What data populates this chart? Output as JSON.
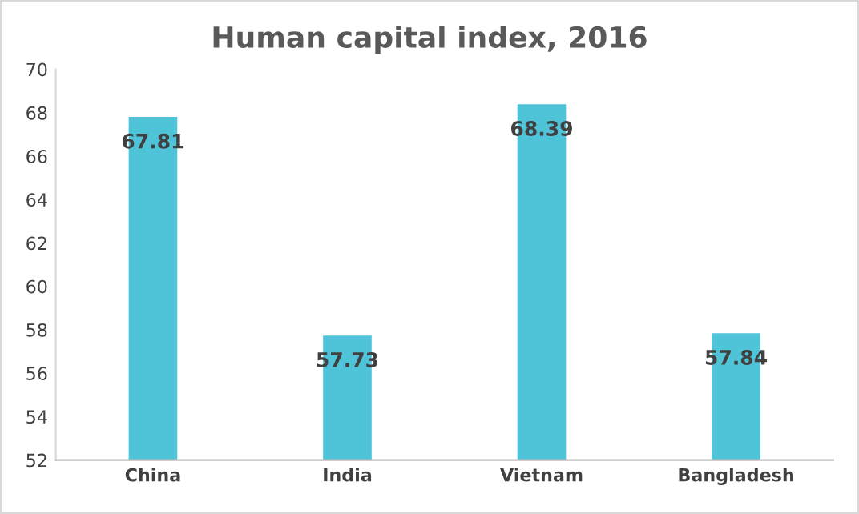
{
  "chart_data": {
    "type": "bar",
    "title": "Human capital index, 2016",
    "categories": [
      "China",
      "India",
      "Vietnam",
      "Bangladesh"
    ],
    "values": [
      67.81,
      57.73,
      68.39,
      57.84
    ],
    "color": "#4fc4d9",
    "ylim": [
      52,
      70
    ],
    "yticks": [
      52,
      54,
      56,
      58,
      60,
      62,
      64,
      66,
      68,
      70
    ],
    "grid": false,
    "data_labels": true
  }
}
